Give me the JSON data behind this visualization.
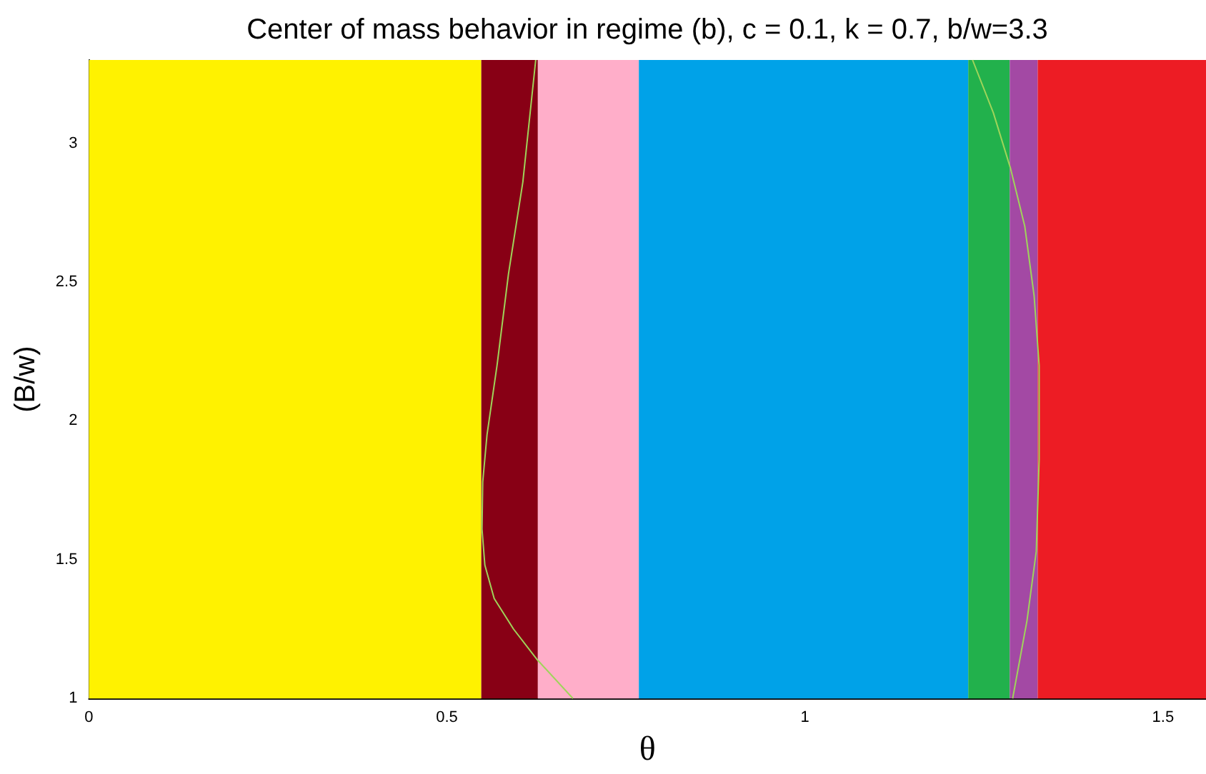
{
  "chart_data": {
    "type": "line",
    "title": "Center of mass behavior in regime (b), c = 0.1, k = 0.7, b/w=3.3",
    "xlabel": "θ",
    "ylabel": "(B/w)",
    "xlim": [
      0,
      1.56
    ],
    "xticks": [
      0,
      0.5,
      1,
      1.5
    ],
    "ylim": [
      1,
      3.3
    ],
    "yticks": [
      1,
      1.5,
      2,
      2.5,
      3
    ],
    "bands": [
      {
        "axis": "x",
        "from": 0,
        "to": 0.548,
        "color": "#fff200"
      },
      {
        "axis": "x",
        "from": 0.548,
        "to": 0.627,
        "color": "#880015"
      },
      {
        "axis": "x",
        "from": 0.627,
        "to": 0.768,
        "color": "#ffaec9"
      },
      {
        "axis": "x",
        "from": 0.768,
        "to": 1.228,
        "color": "#00a2e8"
      },
      {
        "axis": "x",
        "from": 1.228,
        "to": 1.286,
        "color": "#22b14c"
      },
      {
        "axis": "x",
        "from": 1.286,
        "to": 1.325,
        "color": "#a349a4"
      },
      {
        "axis": "x",
        "from": 1.325,
        "to": 1.56,
        "color": "#ed1c24"
      }
    ],
    "series": [
      {
        "color": "#9fd45a",
        "x": [
          0.624,
          0.606,
          0.586,
          0.57,
          0.556,
          0.55,
          0.549,
          0.553,
          0.566,
          0.593,
          0.626,
          0.676
        ],
        "values": [
          3.3,
          2.86,
          2.53,
          2.2,
          1.95,
          1.78,
          1.61,
          1.48,
          1.36,
          1.25,
          1.14,
          1.0
        ]
      },
      {
        "color": "#9fd45a",
        "x": [
          1.234,
          1.263,
          1.287,
          1.307,
          1.32,
          1.327,
          1.327,
          1.323,
          1.31,
          1.29
        ],
        "values": [
          3.3,
          3.11,
          2.91,
          2.7,
          2.45,
          2.2,
          1.86,
          1.53,
          1.28,
          1.0
        ]
      }
    ],
    "grid": false,
    "marker": "none",
    "line_style": "solid"
  }
}
